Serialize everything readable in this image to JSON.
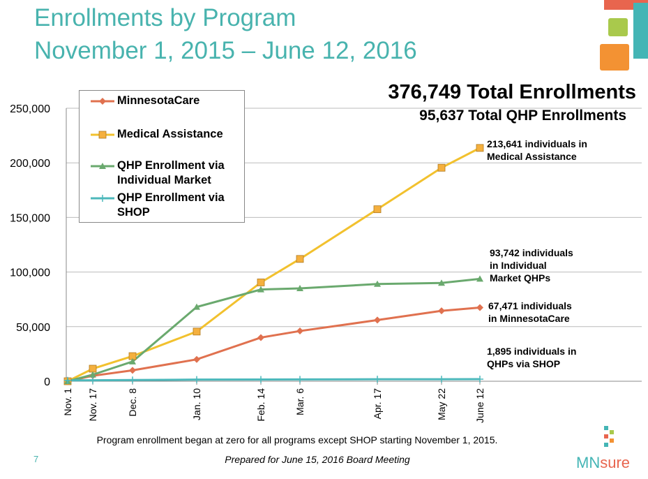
{
  "title_lines": [
    "Enrollments by Program",
    "November 1, 2015 – June 12, 2016"
  ],
  "headline": "376,749 Total Enrollments",
  "subheadline": "95,637 Total QHP Enrollments",
  "footnote": "Program enrollment began at zero for all programs except SHOP starting November 1, 2015.",
  "prepared": "Prepared for June 15, 2016 Board Meeting",
  "page_number": "7",
  "logo": {
    "prefix": "MN",
    "suffix": "sure"
  },
  "chart_data": {
    "type": "line",
    "categories": [
      "Nov. 1",
      "Nov. 17",
      "Dec. 8",
      "Jan. 10",
      "Feb. 14",
      "Mar. 6",
      "Apr. 17",
      "May 22",
      "June 12"
    ],
    "series": [
      {
        "name": "MinnesotaCare",
        "color": "#e0714f",
        "marker": "diamond",
        "values": [
          0,
          5000,
          10000,
          20000,
          40000,
          46000,
          56000,
          64500,
          67471
        ]
      },
      {
        "name": "Medical Assistance",
        "color": "#f2c12e",
        "marker": "square",
        "values": [
          0,
          11500,
          23000,
          45500,
          90500,
          112000,
          157500,
          195500,
          213641
        ]
      },
      {
        "name": "QHP Enrollment via Individual Market",
        "color": "#6aa96e",
        "marker": "triangle",
        "values": [
          0,
          6000,
          18000,
          68000,
          84000,
          85000,
          89000,
          90000,
          93742
        ]
      },
      {
        "name": "QHP Enrollment via SHOP",
        "color": "#4cb8bb",
        "marker": "plus",
        "values": [
          800,
          900,
          1100,
          1500,
          1600,
          1700,
          1800,
          1850,
          1895
        ]
      }
    ],
    "ylim": [
      0,
      250000
    ],
    "yticks": [
      0,
      {
        "value": 50000,
        "label": "50,000"
      },
      {
        "value": 100000,
        "label": "100,000"
      },
      {
        "value": 150000,
        "label": "150,000"
      },
      {
        "value": 200000,
        "label": "200,000"
      },
      {
        "value": 250000,
        "label": "250,000"
      }
    ],
    "grid": true,
    "annotations": [
      {
        "lines": [
          "213,641 individuals in",
          "Medical Assistance"
        ]
      },
      {
        "lines": [
          "93,742 individuals",
          "in Individual",
          "Market QHPs"
        ]
      },
      {
        "lines": [
          "67,471 individuals",
          "in MinnesotaCare"
        ]
      },
      {
        "lines": [
          "1,895 individuals in",
          "QHPs via SHOP"
        ]
      }
    ]
  }
}
